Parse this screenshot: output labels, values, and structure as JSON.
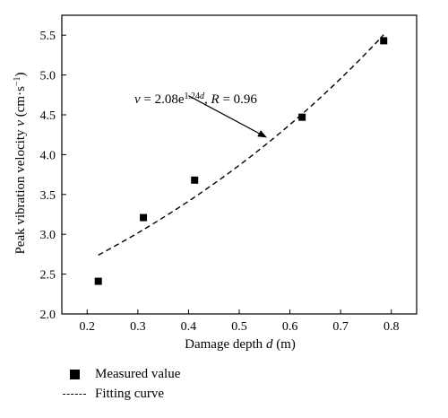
{
  "chart_data": {
    "type": "scatter",
    "xlabel": {
      "prefix": "Damage depth ",
      "var": "d",
      "suffix": " (m)"
    },
    "ylabel": {
      "prefix": "Peak vibration velocity ",
      "var": "v",
      "suffix": " (cm·s",
      "sup": "−1",
      "end": ")"
    },
    "xlim": [
      0.15,
      0.85
    ],
    "ylim": [
      2.0,
      5.75
    ],
    "x_ticks": [
      "0.2",
      "0.3",
      "0.4",
      "0.5",
      "0.6",
      "0.7",
      "0.8"
    ],
    "y_ticks": [
      "2.0",
      "2.5",
      "3.0",
      "3.5",
      "4.0",
      "4.5",
      "5.0",
      "5.5"
    ],
    "grid": false,
    "series": [
      {
        "name": "Measured value",
        "kind": "scatter",
        "marker": "square",
        "color": "#000000",
        "x": [
          0.222,
          0.311,
          0.412,
          0.624,
          0.785
        ],
        "y": [
          2.41,
          3.21,
          3.68,
          4.47,
          5.43
        ]
      },
      {
        "name": "Fitting curve",
        "kind": "line",
        "style": "dashed",
        "color": "#000000",
        "equation": {
          "a": 2.08,
          "b": 1.24
        },
        "x_range": [
          0.222,
          0.785
        ]
      }
    ],
    "annotation": {
      "v": "v",
      "eq": " = 2.08e",
      "exp": "1.24",
      "exp_var": "d",
      "sep": ", ",
      "r": "R",
      "r_val": " = 0.96",
      "arrow_from": [
        0.4,
        4.74
      ],
      "arrow_to": [
        0.553,
        4.22
      ]
    },
    "legend": {
      "position": "bottom-left"
    }
  }
}
